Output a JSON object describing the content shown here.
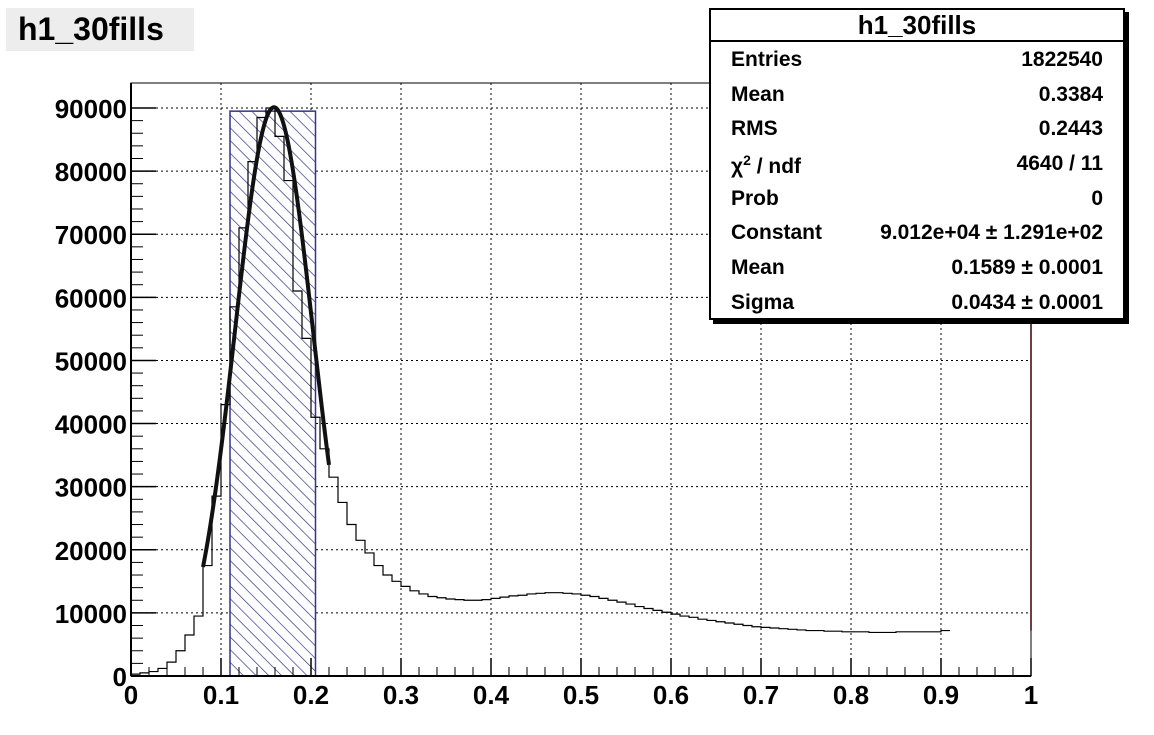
{
  "title": "h1_30fills",
  "stats": {
    "title": "h1_30fills",
    "rows": [
      {
        "name": "Entries",
        "value": "1822540"
      },
      {
        "name": "Mean",
        "value": "0.3384"
      },
      {
        "name": "RMS",
        "value": "0.2443"
      },
      {
        "name": "χ² / ndf",
        "value": "4640 / 11"
      },
      {
        "name": "Prob",
        "value": "0"
      },
      {
        "name": "Constant",
        "value": "9.012e+04 ± 1.291e+02"
      },
      {
        "name": "Mean",
        "value": "0.1589 ± 0.0001"
      },
      {
        "name": "Sigma",
        "value": "0.0434 ± 0.0001"
      }
    ]
  },
  "colors": {
    "hist_line": "#000000",
    "fit_line": "#111111",
    "band_hatch": "#33338a",
    "grid": "#000000",
    "title_bg": "#ededed",
    "edge_line": "#aa0000"
  },
  "chart_data": {
    "type": "bar",
    "title": "h1_30fills",
    "xlabel": "",
    "ylabel": "",
    "xlim": [
      0,
      1
    ],
    "ylim": [
      0,
      90000
    ],
    "grid": true,
    "x_ticks": [
      "0",
      "0.1",
      "0.2",
      "0.3",
      "0.4",
      "0.5",
      "0.6",
      "0.7",
      "0.8",
      "0.9",
      "1"
    ],
    "y_ticks": [
      "0",
      "10000",
      "20000",
      "30000",
      "40000",
      "50000",
      "60000",
      "70000",
      "80000",
      "90000"
    ],
    "bin_width": 0.01,
    "bin_lowedge_start": 0.0,
    "histogram": {
      "name": "h1_30fills",
      "values": [
        300,
        500,
        700,
        1200,
        2200,
        4000,
        6500,
        9500,
        17500,
        28500,
        43000,
        58500,
        71000,
        81500,
        88500,
        90000,
        85500,
        78500,
        61000,
        53500,
        41000,
        36000,
        31500,
        27500,
        24000,
        21500,
        19500,
        17500,
        16000,
        15000,
        14200,
        13500,
        13000,
        12600,
        12400,
        12200,
        12100,
        12000,
        12000,
        12100,
        12300,
        12500,
        12700,
        12800,
        13000,
        13100,
        13200,
        13200,
        13100,
        13000,
        12800,
        12600,
        12300,
        12000,
        11700,
        11400,
        11000,
        10700,
        10400,
        10100,
        9800,
        9500,
        9300,
        9000,
        8800,
        8600,
        8400,
        8200,
        8000,
        7800,
        7700,
        7600,
        7500,
        7400,
        7300,
        7200,
        7200,
        7100,
        7100,
        7000,
        7000,
        7000,
        6900,
        6900,
        6900,
        7000,
        7000,
        7000,
        7000,
        7000,
        7200
      ]
    },
    "fit": {
      "function": "gaus",
      "constant": 90120,
      "mean": 0.1589,
      "sigma": 0.0434,
      "range": [
        0.08,
        0.22
      ]
    },
    "band": {
      "x_range": [
        0.11,
        0.205
      ],
      "y_top": 89500
    }
  }
}
